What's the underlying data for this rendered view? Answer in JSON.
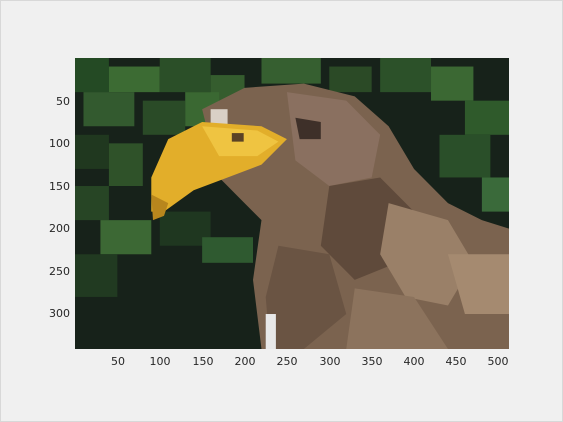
{
  "figure": {
    "image_description": "pixelated photograph of a bald eagle head with yellow beak against dark green foliage",
    "x_ticks": [
      "50",
      "100",
      "150",
      "200",
      "250",
      "300",
      "350",
      "400",
      "450",
      "500"
    ],
    "y_ticks": [
      "50",
      "100",
      "150",
      "200",
      "250",
      "300"
    ],
    "x_range": [
      0,
      512
    ],
    "y_range": [
      0,
      341
    ],
    "colors": {
      "background": "#f0f0f0",
      "beak": "#e6b22a",
      "foliage_dark": "#1b2a1c",
      "foliage_green": "#2f5a2a",
      "feathers": "#7d6652"
    }
  }
}
